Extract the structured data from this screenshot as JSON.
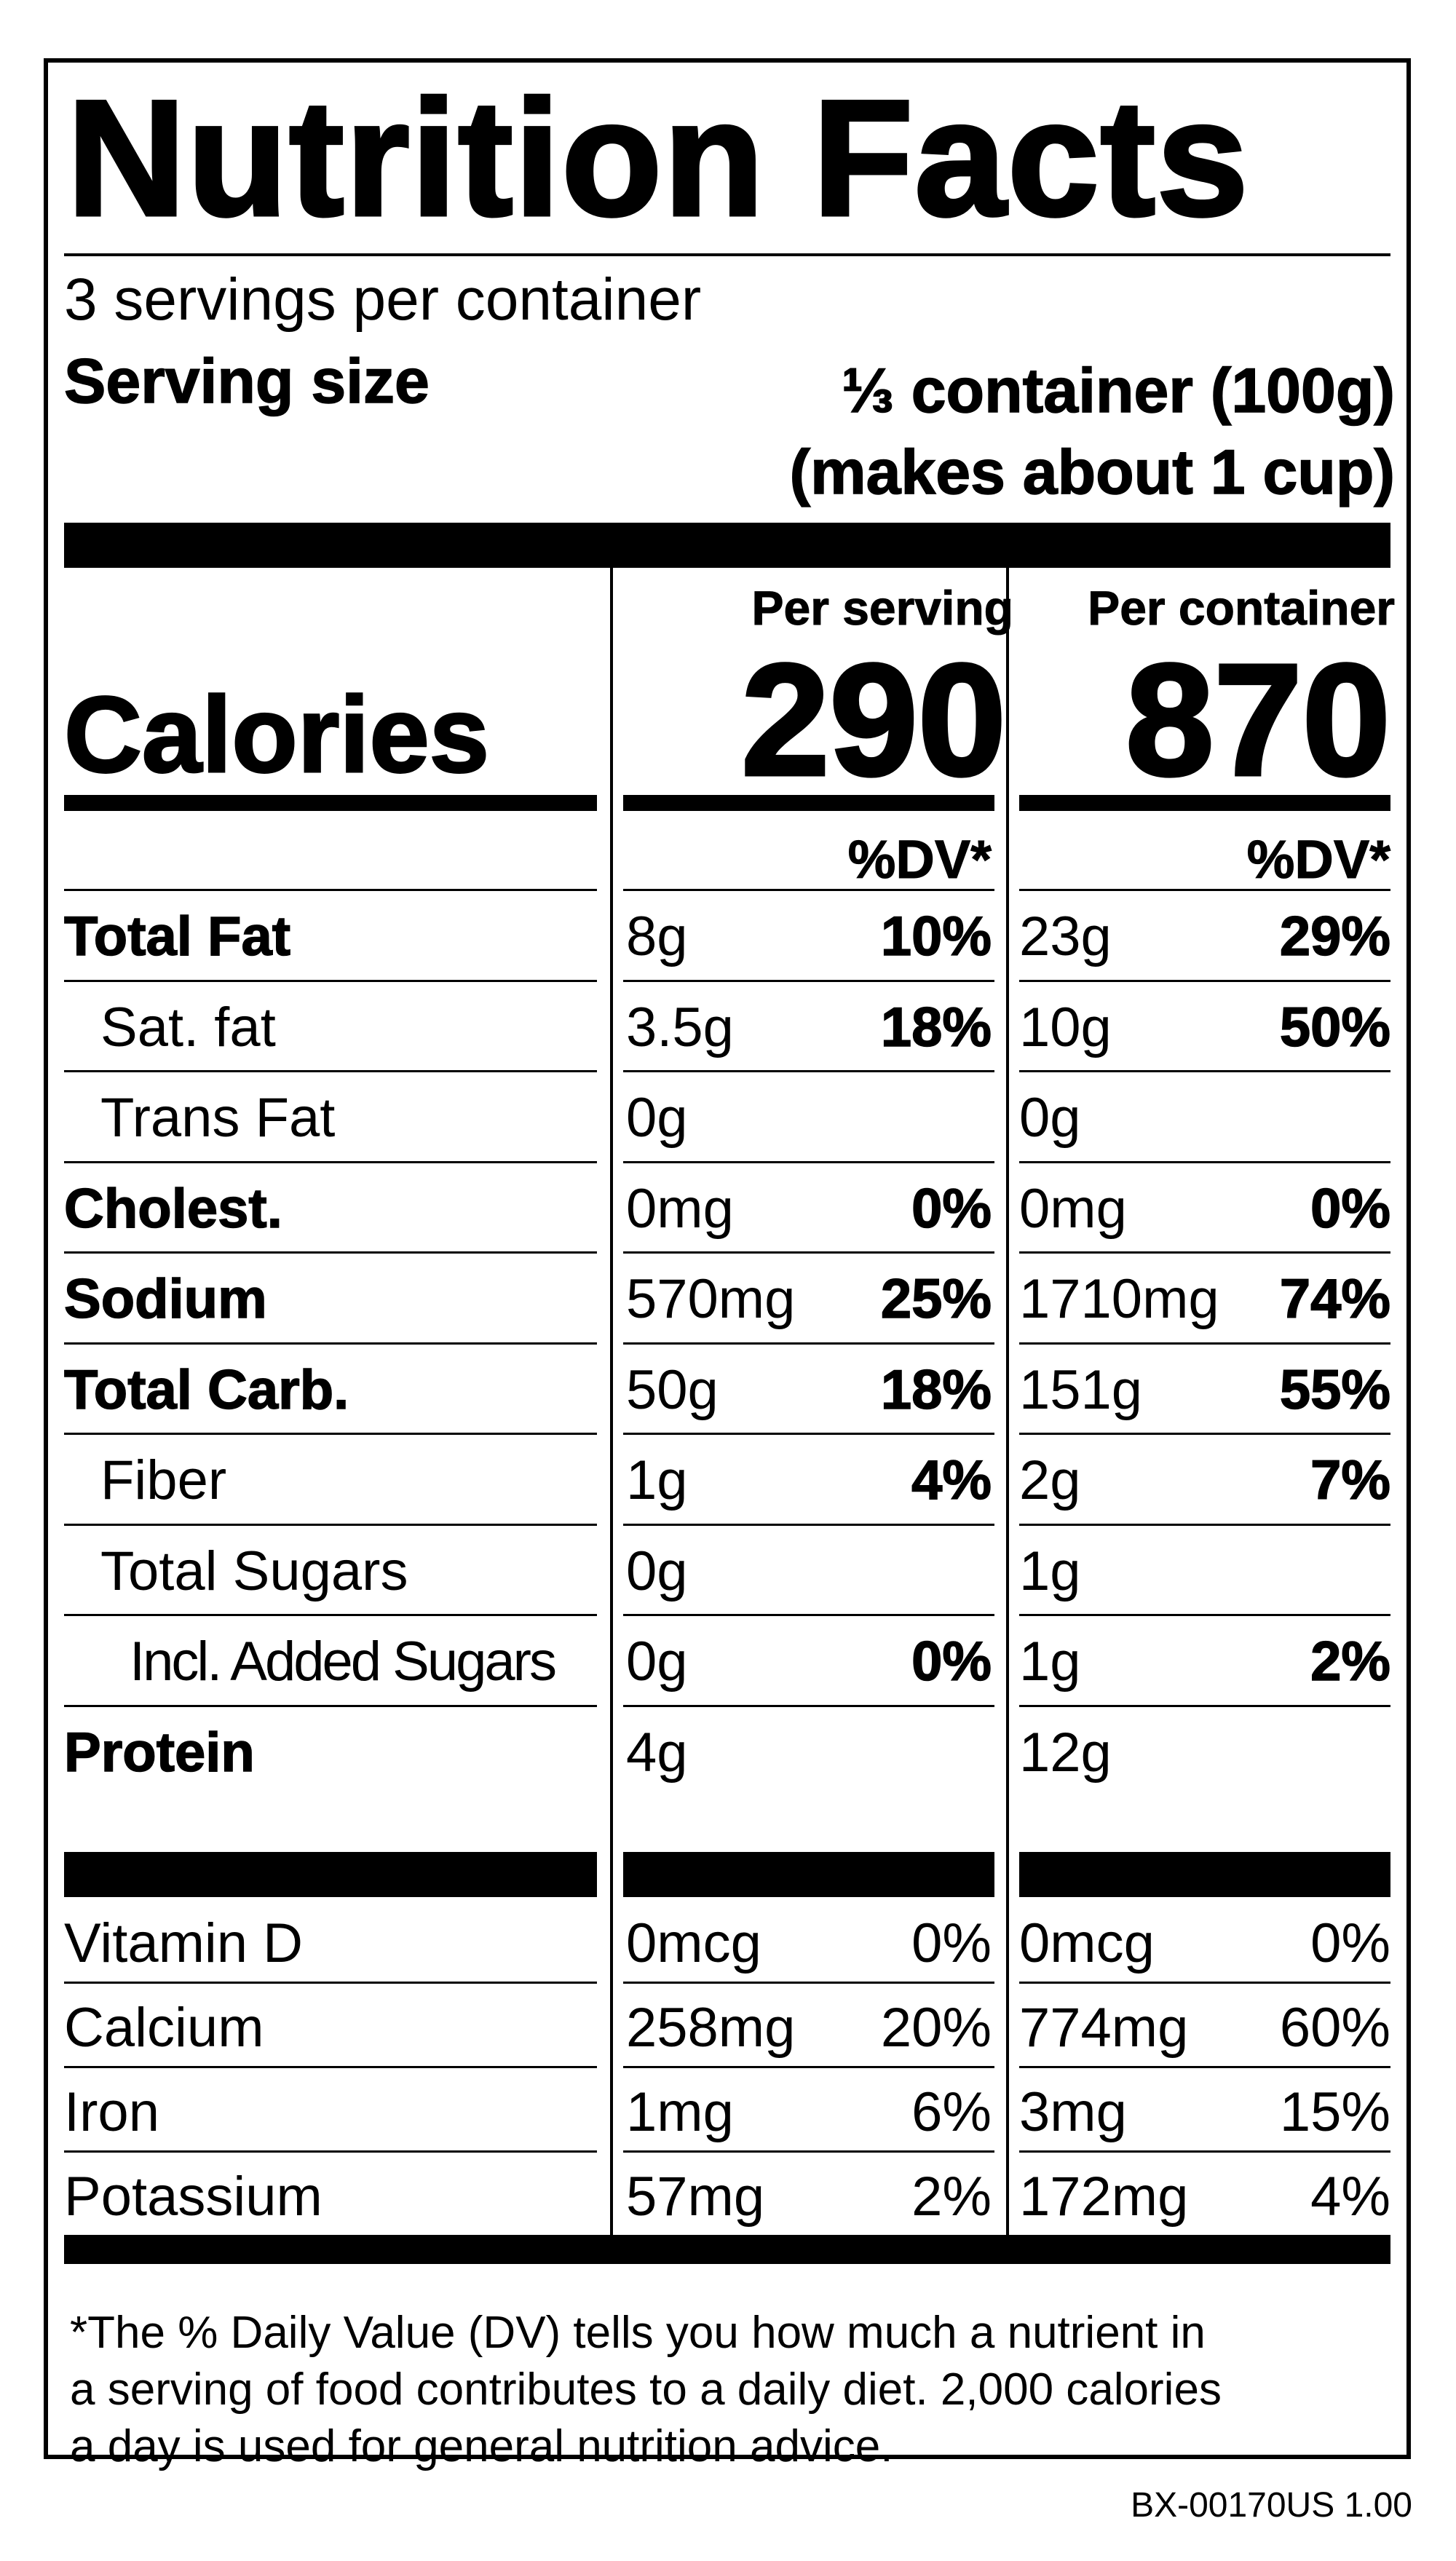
{
  "title": "Nutrition Facts",
  "servings_per_container": "3 servings per container",
  "serving_size": {
    "label": "Serving size",
    "value_line1": "⅓ container (100g)",
    "value_line2": "(makes about 1 cup)"
  },
  "headers": {
    "per_serving": "Per serving",
    "per_container": "Per container",
    "dv": "%DV*"
  },
  "calories": {
    "label": "Calories",
    "per_serving": "290",
    "per_container": "870"
  },
  "nutrients": [
    {
      "name": "Total Fat",
      "bold": true,
      "indent": 0,
      "s_amt": "8g",
      "s_dv": "10%",
      "c_amt": "23g",
      "c_dv": "29%"
    },
    {
      "name": "Sat. fat",
      "bold": false,
      "indent": 1,
      "s_amt": "3.5g",
      "s_dv": "18%",
      "c_amt": "10g",
      "c_dv": "50%"
    },
    {
      "name": "Trans Fat",
      "bold": false,
      "indent": 1,
      "s_amt": "0g",
      "s_dv": "",
      "c_amt": "0g",
      "c_dv": ""
    },
    {
      "name": "Cholest.",
      "bold": true,
      "indent": 0,
      "s_amt": "0mg",
      "s_dv": "0%",
      "c_amt": "0mg",
      "c_dv": "0%"
    },
    {
      "name": "Sodium",
      "bold": true,
      "indent": 0,
      "s_amt": "570mg",
      "s_dv": "25%",
      "c_amt": "1710mg",
      "c_dv": "74%"
    },
    {
      "name": "Total Carb.",
      "bold": true,
      "indent": 0,
      "s_amt": "50g",
      "s_dv": "18%",
      "c_amt": "151g",
      "c_dv": "55%"
    },
    {
      "name": "Fiber",
      "bold": false,
      "indent": 1,
      "s_amt": "1g",
      "s_dv": "4%",
      "c_amt": "2g",
      "c_dv": "7%"
    },
    {
      "name": "Total Sugars",
      "bold": false,
      "indent": 1,
      "s_amt": "0g",
      "s_dv": "",
      "c_amt": "1g",
      "c_dv": ""
    },
    {
      "name": "Incl. Added Sugars",
      "bold": false,
      "indent": 2,
      "s_amt": "0g",
      "s_dv": "0%",
      "c_amt": "1g",
      "c_dv": "2%"
    },
    {
      "name": "Protein",
      "bold": true,
      "indent": 0,
      "s_amt": "4g",
      "s_dv": "",
      "c_amt": "12g",
      "c_dv": ""
    }
  ],
  "vitamins": [
    {
      "name": "Vitamin D",
      "s_amt": "0mcg",
      "s_dv": "0%",
      "c_amt": "0mcg",
      "c_dv": "0%"
    },
    {
      "name": "Calcium",
      "s_amt": "258mg",
      "s_dv": "20%",
      "c_amt": "774mg",
      "c_dv": "60%"
    },
    {
      "name": "Iron",
      "s_amt": "1mg",
      "s_dv": "6%",
      "c_amt": "3mg",
      "c_dv": "15%"
    },
    {
      "name": "Potassium",
      "s_amt": "57mg",
      "s_dv": "2%",
      "c_amt": "172mg",
      "c_dv": "4%"
    }
  ],
  "footnote": [
    "*The % Daily Value (DV) tells you how much a nutrient in",
    "a serving of food contributes to a daily diet. 2,000 calories",
    "a day is used for general nutrition advice."
  ],
  "label_code": "BX-00170US 1.00"
}
